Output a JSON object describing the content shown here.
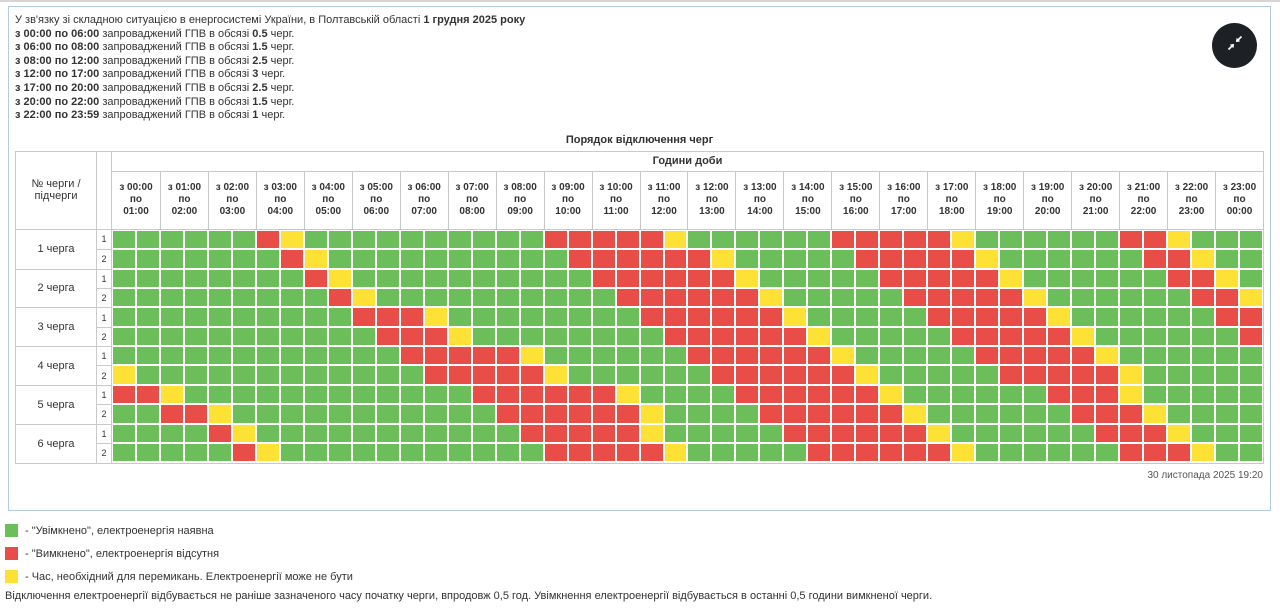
{
  "colors": {
    "green": "#6cbe5a",
    "red": "#e84d48",
    "yellow": "#fde135",
    "panelBorder": "#b3cde0",
    "btnBg": "#1d2126"
  },
  "info": {
    "lines": [
      [
        {
          "text": "У зв'язку зі складною ситуацією в енергосистемі України, в Полтавській області ",
          "bold": false
        },
        {
          "text": "1 грудня 2025 року",
          "bold": true
        }
      ],
      [
        {
          "text": "з 00:00 по 06:00",
          "bold": true
        },
        {
          "text": " запроваджений ГПВ в обсязі ",
          "bold": false
        },
        {
          "text": "0.5",
          "bold": true
        },
        {
          "text": " черг.",
          "bold": false
        }
      ],
      [
        {
          "text": "з 06:00 по 08:00",
          "bold": true
        },
        {
          "text": " запроваджений ГПВ в обсязі ",
          "bold": false
        },
        {
          "text": "1.5",
          "bold": true
        },
        {
          "text": " черг.",
          "bold": false
        }
      ],
      [
        {
          "text": "з 08:00 по 12:00",
          "bold": true
        },
        {
          "text": " запроваджений ГПВ в обсязі ",
          "bold": false
        },
        {
          "text": "2.5",
          "bold": true
        },
        {
          "text": " черг.",
          "bold": false
        }
      ],
      [
        {
          "text": "з 12:00 по 17:00",
          "bold": true
        },
        {
          "text": " запроваджений ГПВ в обсязі ",
          "bold": false
        },
        {
          "text": "3",
          "bold": true
        },
        {
          "text": " черг.",
          "bold": false
        }
      ],
      [
        {
          "text": "з 17:00 по 20:00",
          "bold": true
        },
        {
          "text": " запроваджений ГПВ в обсязі ",
          "bold": false
        },
        {
          "text": "2.5",
          "bold": true
        },
        {
          "text": " черг.",
          "bold": false
        }
      ],
      [
        {
          "text": "з 20:00 по 22:00",
          "bold": true
        },
        {
          "text": " запроваджений ГПВ в обсязі ",
          "bold": false
        },
        {
          "text": "1.5",
          "bold": true
        },
        {
          "text": " черг.",
          "bold": false
        }
      ],
      [
        {
          "text": "з 22:00 по 23:59",
          "bold": true
        },
        {
          "text": " запроваджений ГПВ в обсязі ",
          "bold": false
        },
        {
          "text": "1",
          "bold": true
        },
        {
          "text": " черг.",
          "bold": false
        }
      ]
    ]
  },
  "table": {
    "title": "Порядок відключення черг",
    "hours_label": "Години доби",
    "corner_label": "№ черги / підчерги",
    "hour_prefix": "з",
    "hour_mid": "по",
    "hours": [
      {
        "from": "00:00",
        "to": "01:00"
      },
      {
        "from": "01:00",
        "to": "02:00"
      },
      {
        "from": "02:00",
        "to": "03:00"
      },
      {
        "from": "03:00",
        "to": "04:00"
      },
      {
        "from": "04:00",
        "to": "05:00"
      },
      {
        "from": "05:00",
        "to": "06:00"
      },
      {
        "from": "06:00",
        "to": "07:00"
      },
      {
        "from": "07:00",
        "to": "08:00"
      },
      {
        "from": "08:00",
        "to": "09:00"
      },
      {
        "from": "09:00",
        "to": "10:00"
      },
      {
        "from": "10:00",
        "to": "11:00"
      },
      {
        "from": "11:00",
        "to": "12:00"
      },
      {
        "from": "12:00",
        "to": "13:00"
      },
      {
        "from": "13:00",
        "to": "14:00"
      },
      {
        "from": "14:00",
        "to": "15:00"
      },
      {
        "from": "15:00",
        "to": "16:00"
      },
      {
        "from": "16:00",
        "to": "17:00"
      },
      {
        "from": "17:00",
        "to": "18:00"
      },
      {
        "from": "18:00",
        "to": "19:00"
      },
      {
        "from": "19:00",
        "to": "20:00"
      },
      {
        "from": "20:00",
        "to": "21:00"
      },
      {
        "from": "21:00",
        "to": "22:00"
      },
      {
        "from": "22:00",
        "to": "23:00"
      },
      {
        "from": "23:00",
        "to": "00:00"
      }
    ],
    "cell_legend_key": {
      "G": "on",
      "R": "off",
      "Y": "switching"
    },
    "rows": [
      {
        "queue": "1 черга",
        "sub": "1",
        "cells": "GGGGGGRYGGGGGGGGGGRRRRRYGGGGGGRRRRRYGGGGGGRRYGGG"
      },
      {
        "queue": "1 черга",
        "sub": "2",
        "cells": "GGGGGGGRYGGGGGGGGGGRRRRRRYGGGGGRRRRRYGGGGGGRRYGG"
      },
      {
        "queue": "2 черга",
        "sub": "1",
        "cells": "GGGGGGGGRYGGGGGGGGGGRRRRRRYGGGGGRRRRRYGGGGGGRRYG"
      },
      {
        "queue": "2 черга",
        "sub": "2",
        "cells": "GGGGGGGGGRYGGGGGGGGGGRRRRRRYGGGGGRRRRRYGGGGGGRRY"
      },
      {
        "queue": "3 черга",
        "sub": "1",
        "cells": "GGGGGGGGGGRRRYGGGGGGGGRRRRRRYGGGGGRRRRRYGGGGGGRR"
      },
      {
        "queue": "3 черга",
        "sub": "2",
        "cells": "GGGGGGGGGGGRRRYGGGGGGGGRRRRRRYGGGGGRRRRRYGGGGGGR"
      },
      {
        "queue": "4 черга",
        "sub": "1",
        "cells": "GGGGGGGGGGGGRRRRRYGGGGGGRRRRRRYGGGGGRRRRRYGGGGGG"
      },
      {
        "queue": "4 черга",
        "sub": "2",
        "cells": "YGGGGGGGGGGGGRRRRRYGGGGGGRRRRRRYGGGGGRRRRRYGGGGG"
      },
      {
        "queue": "5 черга",
        "sub": "1",
        "cells": "RRYGGGGGGGGGGGGRRRRRRYGGGGRRRRRRYGGGGGGRRRYGGGGG"
      },
      {
        "queue": "5 черга",
        "sub": "2",
        "cells": "GGRRYGGGGGGGGGGGRRRRRRYGGGGRRRRRRYGGGGGGRRRYGGGG"
      },
      {
        "queue": "6 черга",
        "sub": "1",
        "cells": "GGGGRYGGGGGGGGGGGRRRRRYGGGGGRRRRRRYGGGGGGRRRYGGG"
      },
      {
        "queue": "6 черга",
        "sub": "2",
        "cells": "GGGGGRYGGGGGGGGGGGRRRRRYGGGGGRRRRRRYGGGGGGRRRYGG"
      }
    ],
    "timestamp": "30 листопада 2025 19:20"
  },
  "legend": {
    "items": [
      {
        "key": "on",
        "color": "#6cbe5a",
        "label": "- \"Увімкнено\", електроенергія наявна"
      },
      {
        "key": "off",
        "color": "#e84d48",
        "label": "- \"Вимкнено\", електроенергія відсутня"
      },
      {
        "key": "switching",
        "color": "#fde135",
        "label": "- Час, необхідний для перемикань. Електроенергії може не бути"
      }
    ]
  },
  "footnote": "Відключення електроенергії відбувається не раніше зазначеного часу початку черги, впродовж 0,5 год. Увімкнення електроенергії відбувається в останні 0,5 години вимкненої черги."
}
